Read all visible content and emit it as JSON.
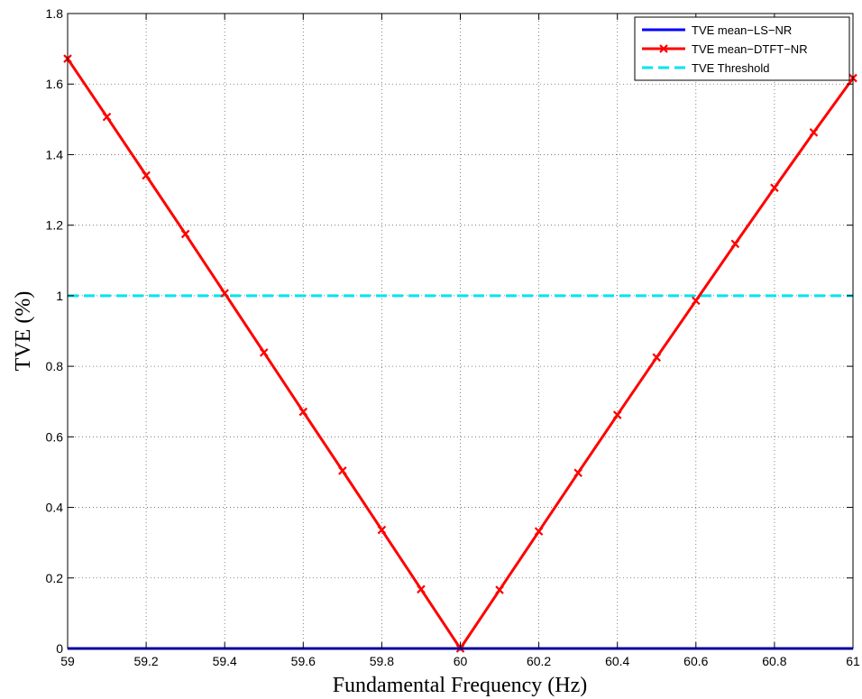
{
  "chart_data": {
    "type": "line",
    "title": "",
    "xlabel": "Fundamental Frequency (Hz)",
    "ylabel": "TVE (%)",
    "xlim": [
      59,
      61
    ],
    "ylim": [
      0,
      1.8
    ],
    "xticks": [
      59,
      59.2,
      59.4,
      59.6,
      59.8,
      60,
      60.2,
      60.4,
      60.6,
      60.8,
      61
    ],
    "xtick_labels": [
      "59",
      "59.2",
      "59.4",
      "59.6",
      "59.8",
      "60",
      "60.2",
      "60.4",
      "60.6",
      "60.8",
      "61"
    ],
    "yticks": [
      0,
      0.2,
      0.4,
      0.6,
      0.8,
      1,
      1.2,
      1.4,
      1.6,
      1.8
    ],
    "ytick_labels": [
      "0",
      "0.2",
      "0.4",
      "0.6",
      "0.8",
      "1",
      "1.2",
      "1.4",
      "1.6",
      "1.8"
    ],
    "grid": true,
    "legend_position": "top-right",
    "series": [
      {
        "name": "TVE mean−LS−NR",
        "color": "#0000ff",
        "style": "solid",
        "marker": "none",
        "x": [
          59,
          61
        ],
        "y": [
          0,
          0
        ]
      },
      {
        "name": "TVE mean−DTFT−NR",
        "color": "#ff0000",
        "style": "solid",
        "marker": "x",
        "x": [
          59,
          59.1,
          59.2,
          59.3,
          59.4,
          59.5,
          59.6,
          59.7,
          59.8,
          59.9,
          60,
          60.1,
          60.2,
          60.3,
          60.4,
          60.5,
          60.6,
          60.7,
          60.8,
          60.9,
          61
        ],
        "y": [
          1.672,
          1.507,
          1.341,
          1.175,
          1.007,
          0.839,
          0.671,
          0.504,
          0.336,
          0.168,
          0,
          0.166,
          0.332,
          0.498,
          0.662,
          0.825,
          0.986,
          1.147,
          1.306,
          1.463,
          1.617
        ]
      },
      {
        "name": "TVE Threshold",
        "color": "#00e5ee",
        "style": "dashed",
        "marker": "none",
        "x": [
          59,
          61
        ],
        "y": [
          1,
          1
        ]
      }
    ]
  }
}
